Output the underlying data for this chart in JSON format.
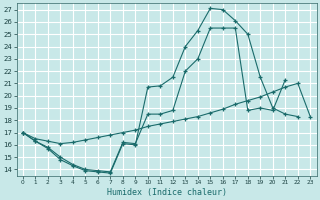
{
  "xlabel": "Humidex (Indice chaleur)",
  "xlim": [
    -0.5,
    23.5
  ],
  "ylim": [
    13.5,
    27.5
  ],
  "xticks": [
    0,
    1,
    2,
    3,
    4,
    5,
    6,
    7,
    8,
    9,
    10,
    11,
    12,
    13,
    14,
    15,
    16,
    17,
    18,
    19,
    20,
    21,
    22,
    23
  ],
  "yticks": [
    14,
    15,
    16,
    17,
    18,
    19,
    20,
    21,
    22,
    23,
    24,
    25,
    26,
    27
  ],
  "bg_color": "#c8e8e8",
  "grid_color": "#b0d8d8",
  "line_color": "#1a6b6b",
  "line1_x": [
    0,
    1,
    2,
    3,
    4,
    5,
    6,
    7,
    8,
    9,
    10,
    11,
    12,
    13,
    14,
    15,
    16,
    17,
    18,
    19,
    20,
    21,
    22
  ],
  "line1_y": [
    17.0,
    16.3,
    15.7,
    14.8,
    14.3,
    13.9,
    13.8,
    13.7,
    16.1,
    16.0,
    20.7,
    20.8,
    21.5,
    24.0,
    25.3,
    27.1,
    27.0,
    26.1,
    25.0,
    21.5,
    19.0,
    18.5,
    18.3
  ],
  "line2_x": [
    0,
    1,
    2,
    3,
    4,
    5,
    6,
    7,
    8,
    9,
    10,
    11,
    12,
    13,
    14,
    15,
    16,
    17,
    18,
    19,
    20,
    21
  ],
  "line2_y": [
    17.0,
    16.3,
    15.8,
    15.0,
    14.4,
    14.0,
    13.9,
    13.8,
    16.2,
    16.1,
    18.5,
    18.5,
    18.8,
    22.0,
    23.0,
    25.5,
    25.5,
    25.5,
    18.8,
    19.0,
    18.8,
    21.3
  ],
  "line3_x": [
    0,
    1,
    2,
    3,
    4,
    5,
    6,
    7,
    8,
    9,
    10,
    11,
    12,
    13,
    14,
    15,
    16,
    17,
    18,
    19,
    20,
    21,
    22,
    23
  ],
  "line3_y": [
    17.0,
    16.5,
    16.3,
    16.1,
    16.2,
    16.4,
    16.6,
    16.8,
    17.0,
    17.2,
    17.5,
    17.7,
    17.9,
    18.1,
    18.3,
    18.6,
    18.9,
    19.3,
    19.6,
    19.9,
    20.3,
    20.7,
    21.0,
    18.3
  ]
}
